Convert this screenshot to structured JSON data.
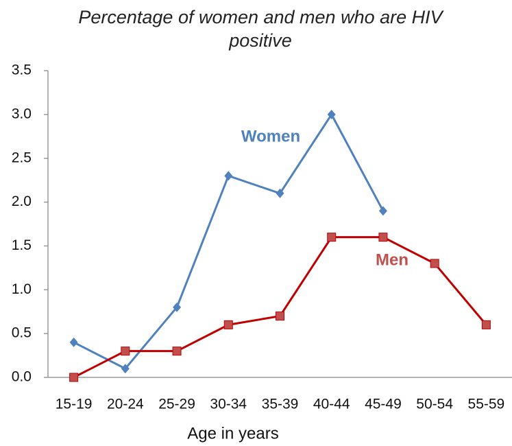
{
  "chart_data": {
    "type": "line",
    "title": "Percentage of women and men who are HIV positive",
    "xlabel": "Age in years",
    "categories": [
      "15-19",
      "20-24",
      "25-29",
      "30-34",
      "35-39",
      "40-44",
      "45-49",
      "50-54",
      "55-59"
    ],
    "series": [
      {
        "name": "Women",
        "color": "#4f81bd",
        "marker": "diamond",
        "values": [
          0.4,
          0.1,
          0.8,
          2.3,
          2.1,
          3.0,
          1.9,
          null,
          null
        ]
      },
      {
        "name": "Men",
        "color": "#c00000",
        "marker": "square",
        "values": [
          0,
          0.3,
          0.3,
          0.6,
          0.7,
          1.6,
          1.6,
          1.3,
          0.6
        ]
      }
    ],
    "ylim": [
      0,
      3.5
    ],
    "yticks": [
      {
        "value": 0,
        "label": "0.0"
      },
      0.5,
      {
        "value": 1,
        "label": "1.0"
      },
      1.5,
      {
        "value": 2,
        "label": "2.0"
      },
      2.5,
      {
        "value": 3,
        "label": "3.0"
      },
      3.5
    ],
    "grid": false
  }
}
